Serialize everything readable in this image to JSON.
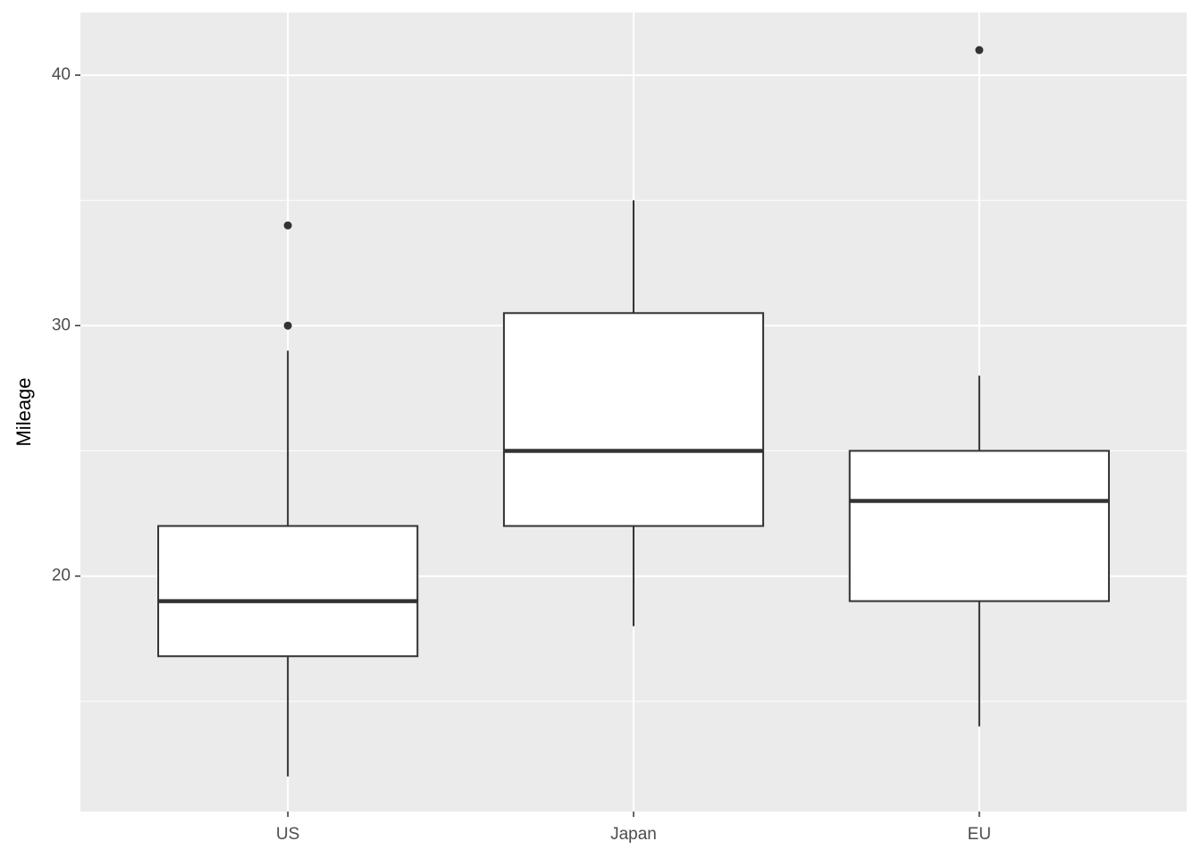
{
  "chart_data": {
    "type": "boxplot",
    "y_label": "Mileage",
    "categories": [
      "US",
      "Japan",
      "EU"
    ],
    "boxes": [
      {
        "whisker_low": 12,
        "q1": 16.8,
        "median": 19,
        "q3": 22,
        "whisker_high": 29,
        "outliers": [
          30,
          34
        ]
      },
      {
        "whisker_low": 18,
        "q1": 22,
        "median": 25,
        "q3": 30.5,
        "whisker_high": 35,
        "outliers": []
      },
      {
        "whisker_low": 14,
        "q1": 19,
        "median": 23,
        "q3": 25,
        "whisker_high": 28,
        "outliers": [
          41
        ]
      }
    ],
    "ylim": [
      10.6,
      42.5
    ],
    "yticks": [
      20,
      30,
      40
    ],
    "yminor": [
      15,
      25,
      35
    ],
    "grid": true,
    "panel_color": "#ebebeb",
    "box_fill": "#ffffff",
    "line_color": "#333333"
  }
}
